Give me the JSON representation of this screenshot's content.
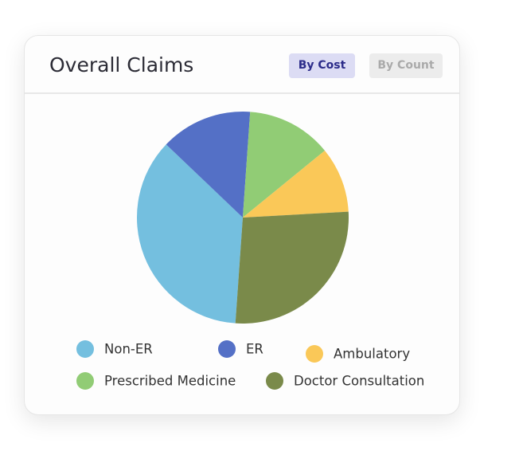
{
  "chart_data": {
    "type": "pie",
    "title": "Overall Claims",
    "buttons": [
      "By Cost",
      "By Count"
    ],
    "categories": [
      "Non-ER",
      "ER",
      "Prescribed Medicine",
      "Ambulatory",
      "Doctor Consultation"
    ],
    "values": [
      36,
      14,
      13,
      10,
      27
    ],
    "colors": [
      "#74bfdf",
      "#5470c6",
      "#91cc75",
      "#fac858",
      "#7a8a4a"
    ]
  }
}
